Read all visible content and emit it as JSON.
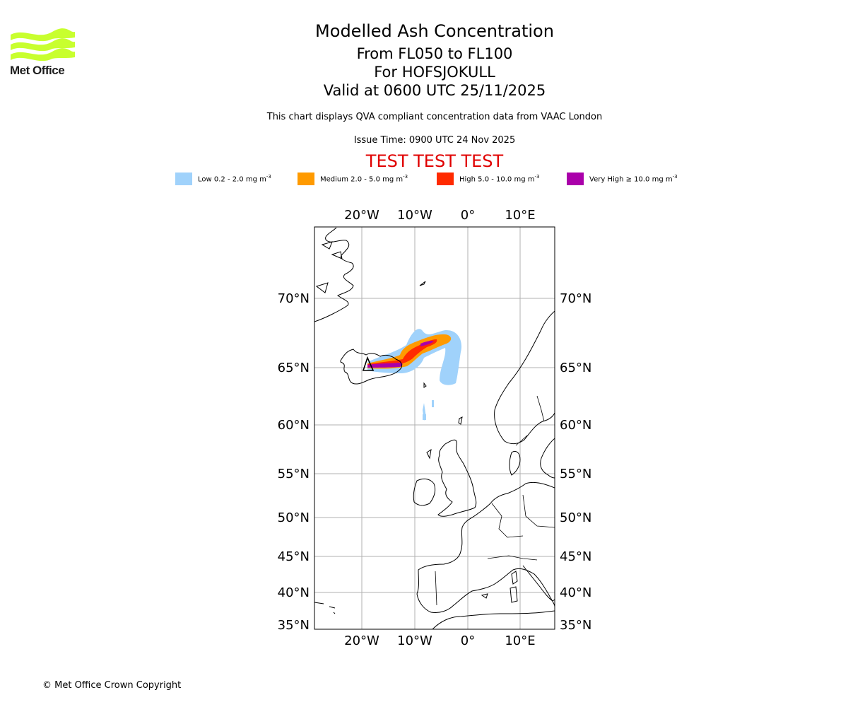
{
  "logo": {
    "text": "Met Office",
    "color": "#c8ff2e"
  },
  "header": {
    "title": "Modelled Ash Concentration",
    "levels": "From FL050 to FL100",
    "volcano": "For HOFSJOKULL",
    "valid": "Valid at 0600 UTC 25/11/2025",
    "note": "This chart displays QVA compliant concentration data from VAAC London",
    "issue": "Issue Time: 0900 UTC 24 Nov 2025",
    "test": "TEST TEST TEST"
  },
  "legend": [
    {
      "label": "Low 0.2 - 2.0 mg m",
      "exp": "-3",
      "color": "#a0d2fb"
    },
    {
      "label": "Medium 2.0 - 5.0 mg m",
      "exp": "-3",
      "color": "#ff9a00"
    },
    {
      "label": "High 5.0 - 10.0 mg m",
      "exp": "-3",
      "color": "#ff2a00"
    },
    {
      "label": "Very High ≥ 10.0 mg m",
      "exp": "-3",
      "color": "#aa00aa"
    }
  ],
  "map": {
    "lon_labels": [
      "20°W",
      "10°W",
      "0°",
      "10°E"
    ],
    "lat_labels": [
      "70°N",
      "65°N",
      "60°N",
      "55°N",
      "50°N",
      "45°N",
      "40°N",
      "35°N"
    ]
  },
  "footer": "© Met Office Crown Copyright"
}
